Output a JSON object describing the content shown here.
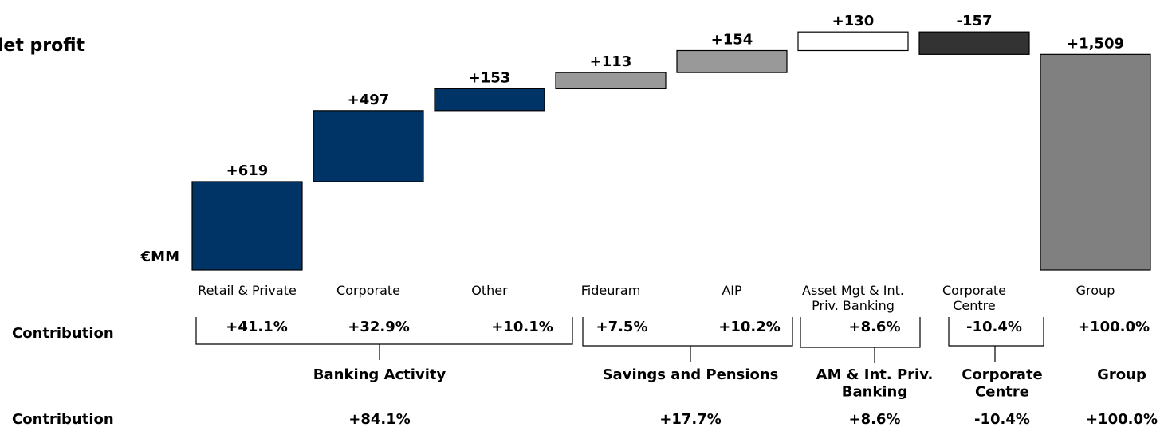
{
  "chart_data": {
    "type": "waterfall",
    "title": "Net profit",
    "unit_label": "€MM",
    "categories": [
      "Retail & Private",
      "Corporate",
      "Other",
      "Fideuram",
      "AIP",
      "Asset Mgt & Int.\nPriv. Banking",
      "Corporate\nCentre",
      "Group"
    ],
    "values": [
      619,
      497,
      153,
      113,
      154,
      130,
      -157,
      1509
    ],
    "value_labels": [
      "+619",
      "+497",
      "+153",
      "+113",
      "+154",
      "+130",
      "-157",
      "+1,509"
    ],
    "colors": [
      "#003366",
      "#003366",
      "#003366",
      "#999999",
      "#999999",
      "#ffffff",
      "#333333",
      "#808080"
    ],
    "ylim": [
      0,
      1890
    ],
    "contribution_label": "Contribution",
    "contributions": [
      41.1,
      32.9,
      10.1,
      7.5,
      10.2,
      8.6,
      -10.4,
      100.0
    ],
    "contribution_labels": [
      "+41.1%",
      "+32.9%",
      "+10.1%",
      "+7.5%",
      "+10.2%",
      "+8.6%",
      "-10.4%",
      "+100.0%"
    ],
    "groups": [
      {
        "name": "Banking Activity",
        "value": 84.1,
        "label": "+84.1%"
      },
      {
        "name": "Savings and Pensions",
        "value": 17.7,
        "label": "+17.7%"
      },
      {
        "name": "AM & Int. Priv.\nBanking",
        "value": 8.6,
        "label": "+8.6%"
      },
      {
        "name": "Corporate\nCentre",
        "value": -10.4,
        "label": "-10.4%"
      },
      {
        "name": "Group",
        "value": 100.0,
        "label": "+100.0%"
      }
    ]
  }
}
